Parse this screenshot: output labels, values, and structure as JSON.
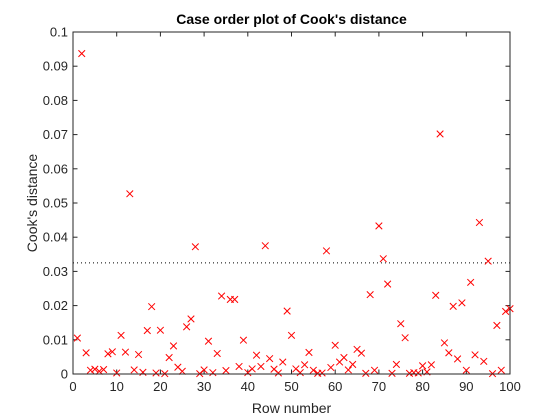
{
  "chart_data": {
    "type": "scatter",
    "title": "Case order plot of Cook's distance",
    "xlabel": "Row number",
    "ylabel": "Cook's distance",
    "xlim": [
      0,
      100
    ],
    "ylim": [
      0,
      0.1
    ],
    "xticks": [
      0,
      10,
      20,
      30,
      40,
      50,
      60,
      70,
      80,
      90,
      100
    ],
    "yticks": [
      0,
      0.01,
      0.02,
      0.03,
      0.04,
      0.05,
      0.06,
      0.07,
      0.08,
      0.09,
      0.1
    ],
    "ytick_labels": [
      "0",
      "0.01",
      "0.02",
      "0.03",
      "0.04",
      "0.05",
      "0.06",
      "0.07",
      "0.08",
      "0.09",
      "0.1"
    ],
    "grid": false,
    "marker": "x",
    "marker_color": "#ff0000",
    "threshold": 0.0325,
    "threshold_style": "dotted",
    "x": [
      1,
      2,
      3,
      4,
      5,
      6,
      7,
      8,
      9,
      10,
      11,
      12,
      13,
      14,
      15,
      16,
      17,
      18,
      19,
      20,
      21,
      22,
      23,
      24,
      25,
      26,
      27,
      28,
      29,
      30,
      31,
      32,
      33,
      34,
      35,
      36,
      37,
      38,
      39,
      40,
      41,
      42,
      43,
      44,
      45,
      46,
      47,
      48,
      49,
      50,
      51,
      52,
      53,
      54,
      55,
      56,
      57,
      58,
      59,
      60,
      61,
      62,
      63,
      64,
      65,
      66,
      67,
      68,
      69,
      70,
      71,
      72,
      73,
      74,
      75,
      76,
      77,
      78,
      79,
      80,
      81,
      82,
      83,
      84,
      85,
      86,
      87,
      88,
      89,
      90,
      91,
      92,
      93,
      94,
      95,
      96,
      97,
      98,
      99,
      100
    ],
    "y": [
      0.0105,
      0.0937,
      0.0062,
      0.0011,
      0.0014,
      0.0008,
      0.0013,
      0.0059,
      0.0065,
      0.0003,
      0.0113,
      0.0064,
      0.0527,
      0.0012,
      0.0057,
      0.0005,
      0.0127,
      0.0197,
      0.0003,
      0.0128,
      0.0001,
      0.0048,
      0.0082,
      0.002,
      0.0008,
      0.0138,
      0.0161,
      0.0372,
      0.0001,
      0.0012,
      0.0096,
      0.0004,
      0.006,
      0.0228,
      0.001,
      0.0218,
      0.0218,
      0.0022,
      0.0099,
      0.0004,
      0.0015,
      0.0055,
      0.0022,
      0.0375,
      0.0045,
      0.0014,
      0.0003,
      0.0035,
      0.0184,
      0.0113,
      0.0015,
      0.0004,
      0.0027,
      0.0063,
      0.0011,
      0.0002,
      0.0003,
      0.036,
      0.0019,
      0.0084,
      0.0035,
      0.0048,
      0.0012,
      0.0028,
      0.0072,
      0.0061,
      0.0002,
      0.0232,
      0.0011,
      0.0433,
      0.0337,
      0.0263,
      0.0002,
      0.0028,
      0.0147,
      0.0106,
      0.0002,
      0.0004,
      0.0003,
      0.0024,
      0.0006,
      0.0027,
      0.023,
      0.0702,
      0.0091,
      0.0062,
      0.0198,
      0.0044,
      0.0208,
      0.0011,
      0.0268,
      0.0056,
      0.0443,
      0.0037,
      0.033,
      0.0001,
      0.0142,
      0.0011,
      0.0183,
      0.0191
    ]
  }
}
